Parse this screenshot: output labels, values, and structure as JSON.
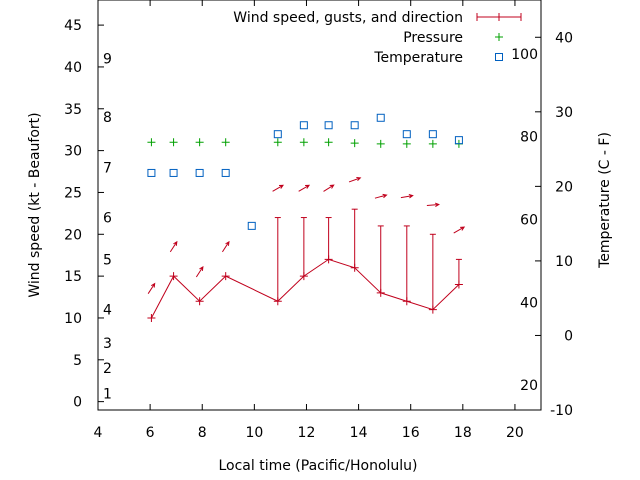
{
  "chart_data": {
    "type": "line",
    "xlabel": "Local time (Pacific/Honolulu)",
    "ylabel": "Wind speed (kt - Beaufort)",
    "y2label": "Temperature (C - F)",
    "xlim": [
      4,
      21
    ],
    "ylim": [
      -1,
      48
    ],
    "y2lim": [
      -10,
      45
    ],
    "x_ticks": [
      4,
      6,
      8,
      10,
      12,
      14,
      16,
      18,
      20
    ],
    "y_ticks": [
      0,
      5,
      10,
      15,
      20,
      25,
      30,
      35,
      40,
      45
    ],
    "y2_ticks_c": [
      -10,
      0,
      10,
      20,
      30,
      40
    ],
    "y2_ticks_f": [
      {
        "label": "20",
        "celsius": -6.67
      },
      {
        "label": "40",
        "celsius": 4.44
      },
      {
        "label": "60",
        "celsius": 15.56
      },
      {
        "label": "80",
        "celsius": 26.67
      },
      {
        "label": "100",
        "celsius": 37.78
      }
    ],
    "beaufort": [
      {
        "label": "1",
        "wind": 1
      },
      {
        "label": "2",
        "wind": 4
      },
      {
        "label": "3",
        "wind": 7
      },
      {
        "label": "4",
        "wind": 11
      },
      {
        "label": "5",
        "wind": 17
      },
      {
        "label": "6",
        "wind": 22
      },
      {
        "label": "7",
        "wind": 28
      },
      {
        "label": "8",
        "wind": 34
      },
      {
        "label": "9",
        "wind": 41
      }
    ],
    "legend": {
      "position": "top-right",
      "entries": [
        "Wind speed, gusts, and direction",
        "Pressure",
        "Temperature"
      ]
    },
    "wind": {
      "x": [
        6.05,
        6.9,
        7.9,
        8.9,
        10.9,
        11.9,
        12.85,
        13.85,
        14.85,
        15.85,
        16.85,
        17.85
      ],
      "speed": [
        10,
        15,
        12,
        15,
        12,
        15,
        17,
        16,
        13,
        12,
        11,
        14
      ],
      "gust": [
        10,
        15,
        12,
        15,
        22,
        22,
        22,
        23,
        21,
        21,
        20,
        17
      ],
      "dir_from_deg": [
        213,
        213,
        213,
        213,
        240,
        240,
        238,
        250,
        255,
        260,
        265,
        240
      ]
    },
    "pressure": {
      "x": [
        6.05,
        6.9,
        7.9,
        8.9,
        10.9,
        11.9,
        12.85,
        13.85,
        14.85,
        15.85,
        16.85,
        17.85
      ],
      "wind_scale_value": [
        31,
        31,
        31,
        31,
        31,
        31,
        31,
        30.9,
        30.8,
        30.8,
        30.8,
        30.8
      ]
    },
    "temperature": {
      "x": [
        6.05,
        6.9,
        7.9,
        8.9,
        9.9,
        10.9,
        11.9,
        12.85,
        13.85,
        14.85,
        15.85,
        16.85,
        17.85
      ],
      "celsius": [
        21.8,
        21.8,
        21.8,
        21.8,
        14.7,
        27,
        28.2,
        28.2,
        28.2,
        29.2,
        27,
        27,
        26.2
      ]
    }
  }
}
